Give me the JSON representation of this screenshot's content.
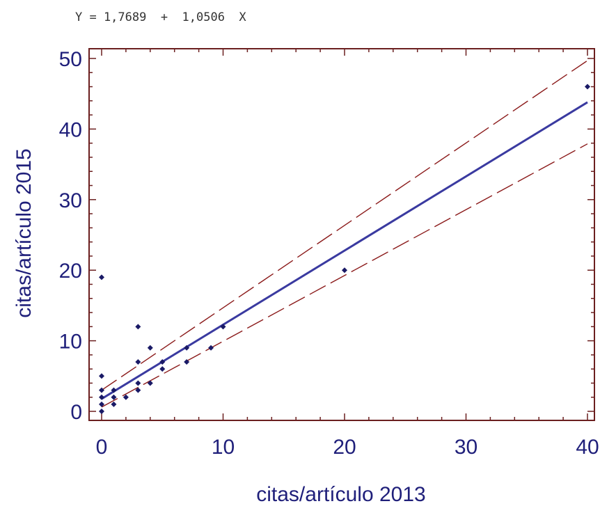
{
  "chart_data": {
    "type": "scatter",
    "equation": "Y = 1,7689  +  1,0506  X",
    "xlabel": "citas/artículo 2013",
    "ylabel": "citas/artículo 2015",
    "xlim": [
      0,
      40
    ],
    "ylim": [
      0,
      50
    ],
    "x_ticks": [
      0,
      10,
      20,
      30,
      40
    ],
    "y_ticks": [
      0,
      10,
      20,
      30,
      40,
      50
    ],
    "x_tick_labels": [
      "0",
      "10",
      "20",
      "30",
      "40"
    ],
    "y_tick_labels": [
      "0",
      "10",
      "20",
      "30",
      "40",
      "50"
    ],
    "grid": false,
    "regression": {
      "intercept": 1.7689,
      "slope": 1.0506
    },
    "confidence_band": {
      "upper": [
        [
          0,
          3.0
        ],
        [
          40,
          49.7
        ]
      ],
      "lower": [
        [
          0,
          0.6
        ],
        [
          40,
          37.9
        ]
      ]
    },
    "points": [
      [
        0,
        0
      ],
      [
        0,
        1
      ],
      [
        0,
        2
      ],
      [
        0,
        3
      ],
      [
        0,
        5
      ],
      [
        0,
        19
      ],
      [
        1,
        1
      ],
      [
        1,
        2
      ],
      [
        1,
        3
      ],
      [
        2,
        2
      ],
      [
        3,
        3
      ],
      [
        3,
        4
      ],
      [
        3,
        7
      ],
      [
        3,
        12
      ],
      [
        4,
        4
      ],
      [
        4,
        9
      ],
      [
        5,
        6
      ],
      [
        5,
        7
      ],
      [
        7,
        7
      ],
      [
        7,
        9
      ],
      [
        9,
        9
      ],
      [
        10,
        12
      ],
      [
        20,
        20
      ],
      [
        40,
        46
      ]
    ],
    "colors": {
      "frame": "#6b1f1f",
      "points": "#1a1a66",
      "fit_line": "#3a3aa0",
      "band": "#8b1a1a",
      "text": "#1f1f7a"
    }
  }
}
